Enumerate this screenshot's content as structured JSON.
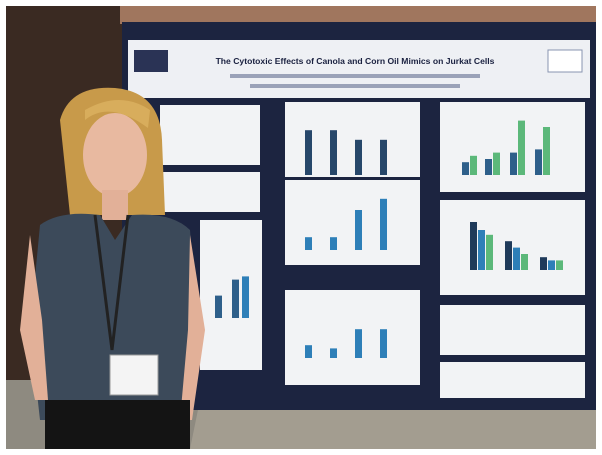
{
  "poster": {
    "title": "The Cytotoxic Effects of Canola and Corn Oil Mimics on Jurkat Cells"
  }
}
